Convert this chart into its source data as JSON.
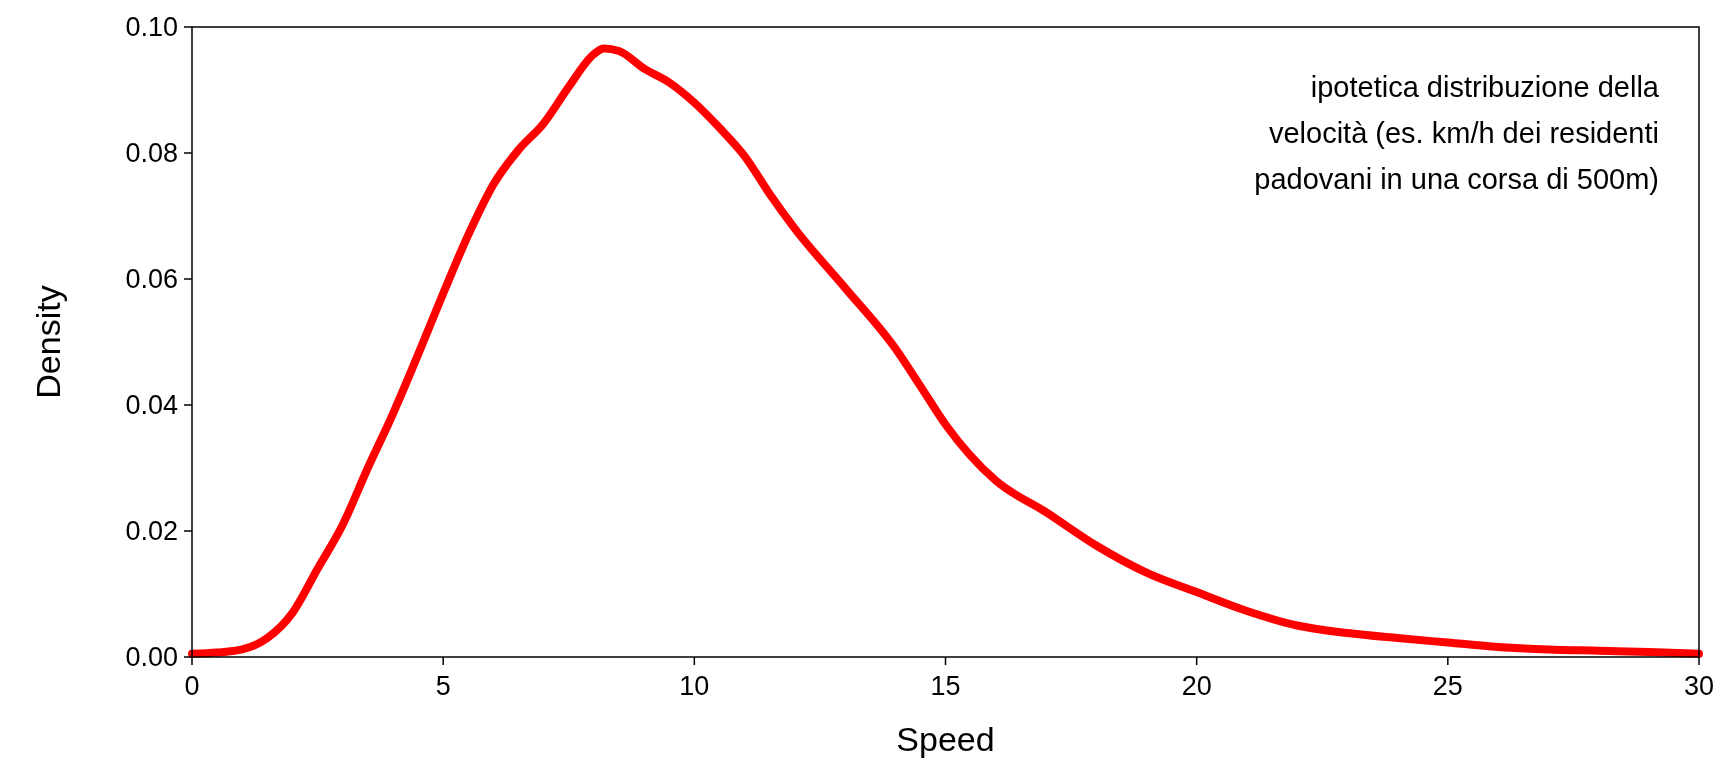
{
  "chart_data": {
    "type": "line",
    "xlabel": "Speed",
    "ylabel": "Density",
    "annotations": [
      "ipotetica distribuzione della\nvelocità (es. km/h dei residenti\npadovani in una corsa di 500m)"
    ],
    "x": [
      0,
      0.5,
      1,
      1.5,
      2,
      2.5,
      3,
      3.5,
      4,
      4.5,
      5,
      5.5,
      6,
      6.5,
      7,
      7.5,
      8,
      8.2,
      8.5,
      9,
      9.5,
      10,
      10.5,
      11,
      11.5,
      12,
      13,
      14,
      14.5,
      15,
      16,
      17,
      18,
      19,
      20,
      21,
      22,
      23,
      24,
      25,
      26,
      27,
      28,
      29,
      30
    ],
    "series": [
      {
        "color": "#ff0000",
        "values": [
          0.0005,
          0.0007,
          0.0012,
          0.003,
          0.007,
          0.014,
          0.021,
          0.03,
          0.0386,
          0.048,
          0.0577,
          0.067,
          0.075,
          0.0805,
          0.0847,
          0.0905,
          0.0957,
          0.0966,
          0.0962,
          0.0934,
          0.0912,
          0.088,
          0.084,
          0.0795,
          0.0735,
          0.068,
          0.0586,
          0.049,
          0.043,
          0.0369,
          0.028,
          0.023,
          0.0177,
          0.0134,
          0.0103,
          0.0073,
          0.005,
          0.0038,
          0.003,
          0.0023,
          0.0016,
          0.0012,
          0.001,
          0.0008,
          0.0005
        ]
      }
    ],
    "xlim": [
      0,
      30
    ],
    "xticks": [
      0,
      5,
      10,
      15,
      20,
      25,
      30
    ],
    "ylim": [
      0,
      0.1
    ],
    "yticks": [
      {
        "value": 0,
        "label": "0.00"
      },
      {
        "value": 0.02,
        "label": "0.02"
      },
      {
        "value": 0.04,
        "label": "0.04"
      },
      {
        "value": 0.06,
        "label": "0.06"
      },
      {
        "value": 0.08,
        "label": "0.08"
      },
      {
        "value": 0.1,
        "label": "0.10"
      }
    ],
    "line_style": "solid"
  }
}
